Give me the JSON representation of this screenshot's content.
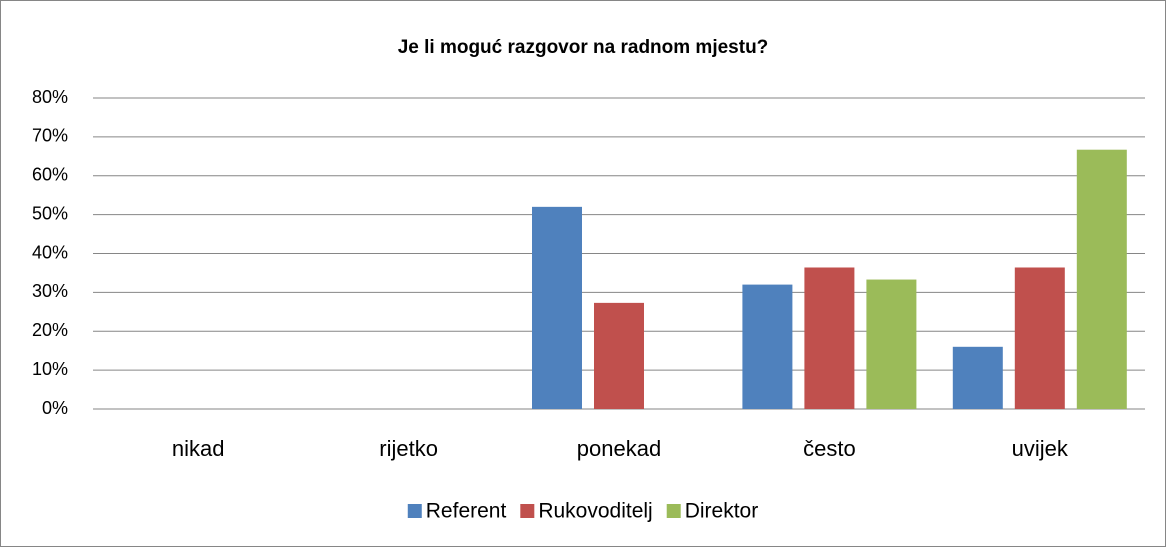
{
  "chart_data": {
    "type": "bar",
    "title": "Je li moguć razgovor na radnom mjestu?",
    "categories": [
      "nikad",
      "rijetko",
      "ponekad",
      "često",
      "uvijek"
    ],
    "series": [
      {
        "name": "Referent",
        "color": "#4f81bd",
        "values": [
          0,
          0,
          52,
          32,
          16
        ]
      },
      {
        "name": "Rukovoditelj",
        "color": "#c0504d",
        "values": [
          0,
          0,
          27.3,
          36.4,
          36.4
        ]
      },
      {
        "name": "Direktor",
        "color": "#9bbb59",
        "values": [
          0,
          0,
          0,
          33.3,
          66.7
        ]
      }
    ],
    "ylim": [
      0,
      80
    ],
    "yticks": [
      {
        "value": 0,
        "label": "0%"
      },
      {
        "value": 10,
        "label": "10%"
      },
      {
        "value": 20,
        "label": "20%"
      },
      {
        "value": 30,
        "label": "30%"
      },
      {
        "value": 40,
        "label": "40%"
      },
      {
        "value": 50,
        "label": "50%"
      },
      {
        "value": 60,
        "label": "60%"
      },
      {
        "value": 70,
        "label": "70%"
      },
      {
        "value": 80,
        "label": "80%"
      }
    ],
    "grid": true,
    "legend": "bottom"
  }
}
